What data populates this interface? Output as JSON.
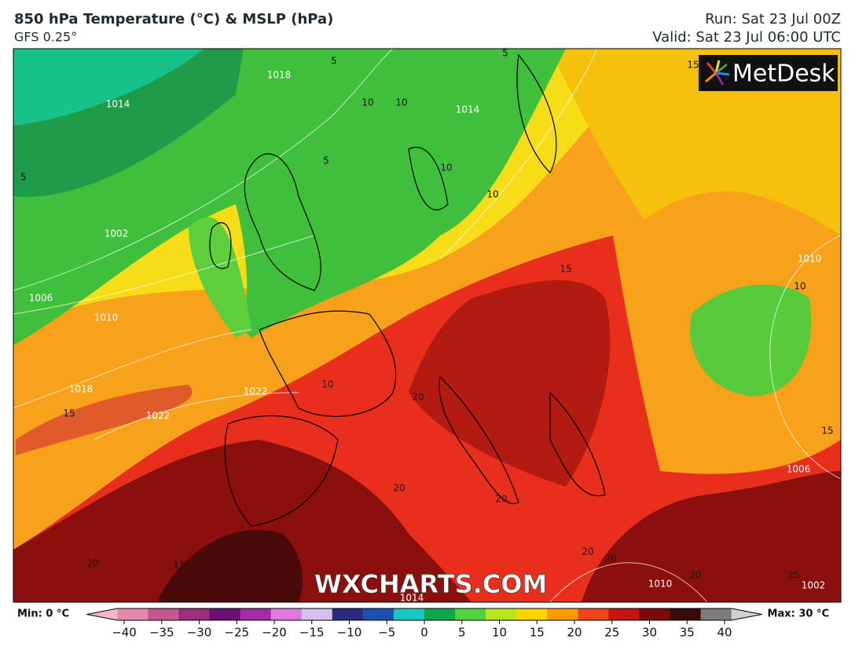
{
  "header": {
    "title": "850 hPa Temperature (°C) & MSLP (hPa)",
    "model": "GFS 0.25°",
    "run": "Run: Sat 23 Jul 00Z",
    "valid": "Valid: Sat 23 Jul 06:00 UTC"
  },
  "logo": "MetDesk",
  "watermark": "WXCHARTS.COM",
  "contour_labels": [
    "1018",
    "1014",
    "5",
    "5",
    "10",
    "10",
    "5",
    "1014",
    "10",
    "10",
    "5",
    "1002",
    "1006",
    "1010",
    "15",
    "10",
    "1010",
    "1018",
    "15",
    "1022",
    "10",
    "1022",
    "20",
    "20",
    "20",
    "20",
    "20",
    "20",
    "20",
    "15",
    "1006",
    "15",
    "1014",
    "1010",
    "1002",
    "25",
    "15"
  ],
  "legend": {
    "min_label": "Min: 0 °C",
    "max_label": "Max: 30 °C",
    "ticks": [
      {
        "value": -40,
        "label": "−40"
      },
      {
        "value": -35,
        "label": "−35"
      },
      {
        "value": -30,
        "label": "−30"
      },
      {
        "value": -25,
        "label": "−25"
      },
      {
        "value": -20,
        "label": "−20"
      },
      {
        "value": -15,
        "label": "−15"
      },
      {
        "value": -10,
        "label": "−10"
      },
      {
        "value": -5,
        "label": "−5"
      },
      0,
      5,
      10,
      15,
      20,
      25,
      30,
      35,
      40
    ],
    "range": [
      -45,
      45
    ],
    "colors": [
      "#f7b6c8",
      "#e48aae",
      "#c5578e",
      "#9a2e7a",
      "#6a1070",
      "#a52aa8",
      "#e07ae0",
      "#d8c0ee",
      "#2a2a7a",
      "#1c4fb0",
      "#19c7c2",
      "#0ea54a",
      "#4fd23c",
      "#b8e61e",
      "#ffd400",
      "#ff9d00",
      "#f0451a",
      "#c91414",
      "#7a0c0c",
      "#3a0a0a",
      "#7c7c7c",
      "#d0d0d0"
    ]
  }
}
